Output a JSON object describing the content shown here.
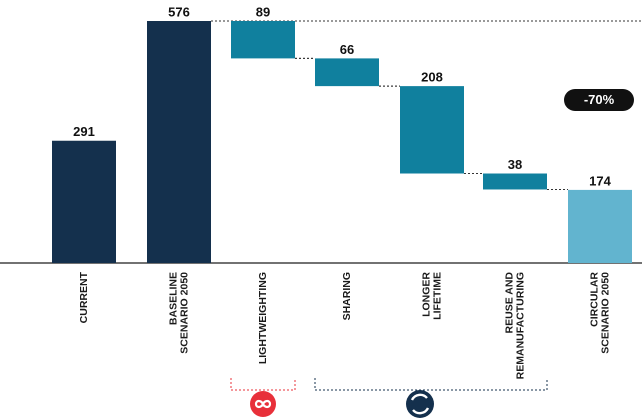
{
  "chart_data": {
    "type": "waterfall",
    "categories": [
      [
        "CURRENT"
      ],
      [
        "BASELINE",
        "SCENARIO 2050"
      ],
      [
        "LIGHTWEIGHTING"
      ],
      [
        "SHARING"
      ],
      [
        "LONGER",
        "LIFETIME"
      ],
      [
        "REUSE AND",
        "REMANUFACTURING"
      ],
      [
        "CIRCULAR",
        "SCENARIO 2050"
      ]
    ],
    "values": [
      291,
      576,
      89,
      66,
      208,
      38,
      174
    ],
    "measure": [
      "absolute",
      "absolute",
      "decrease",
      "decrease",
      "decrease",
      "decrease",
      "absolute"
    ],
    "colors": [
      "#14304d",
      "#14304d",
      "#10809e",
      "#10809e",
      "#10809e",
      "#10809e",
      "#62b4cf"
    ],
    "label_colors": [
      "#1a1a1a",
      "#1a1a1a",
      "#e8303a",
      "#1a1a1a",
      "#1a1a1a",
      "#1a1a1a",
      "#1a1a1a"
    ],
    "ylim": [
      0,
      576
    ],
    "annotation": "-70%"
  }
}
